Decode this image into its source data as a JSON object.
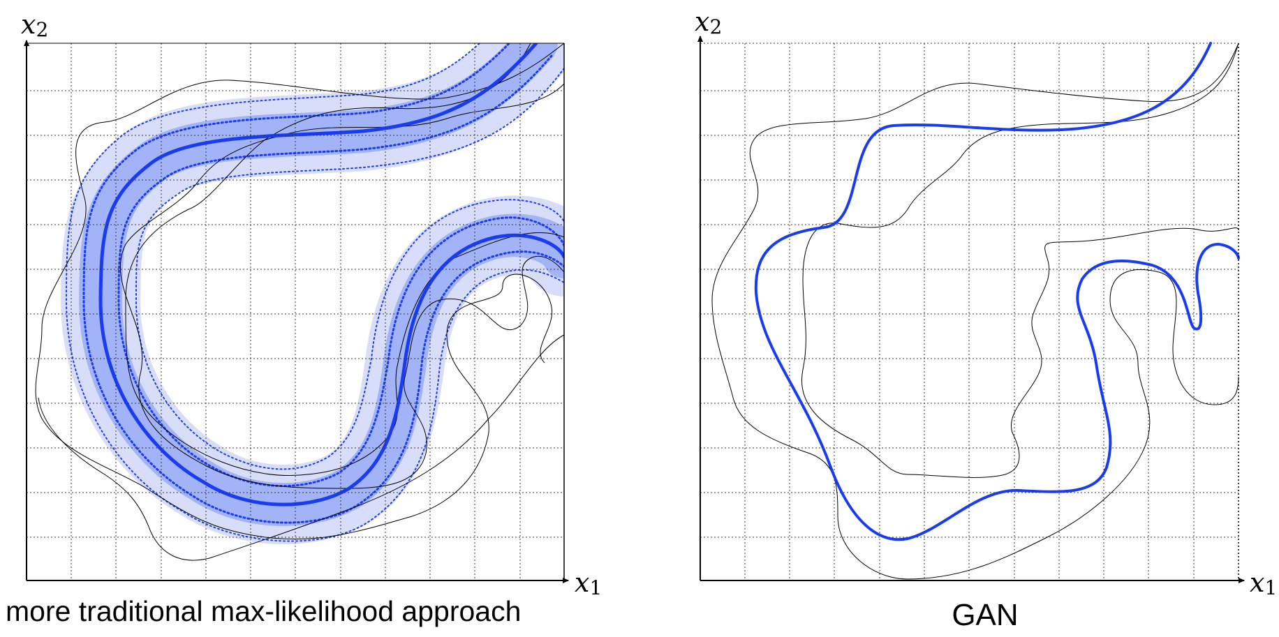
{
  "panels": [
    {
      "x_axis_label": "x",
      "x_axis_subscript": "1",
      "y_axis_label": "x",
      "y_axis_subscript": "2",
      "caption": "more traditional max-likelihood approach"
    },
    {
      "x_axis_label": "x",
      "x_axis_subscript": "1",
      "y_axis_label": "x",
      "y_axis_subscript": "2",
      "caption": "GAN"
    }
  ],
  "colors": {
    "model_curve": "#1a3cf0",
    "band_inner": "#a3b3f7",
    "band_outer": "#d8def9",
    "data_manifold": "#000000",
    "grid": "#333333"
  }
}
